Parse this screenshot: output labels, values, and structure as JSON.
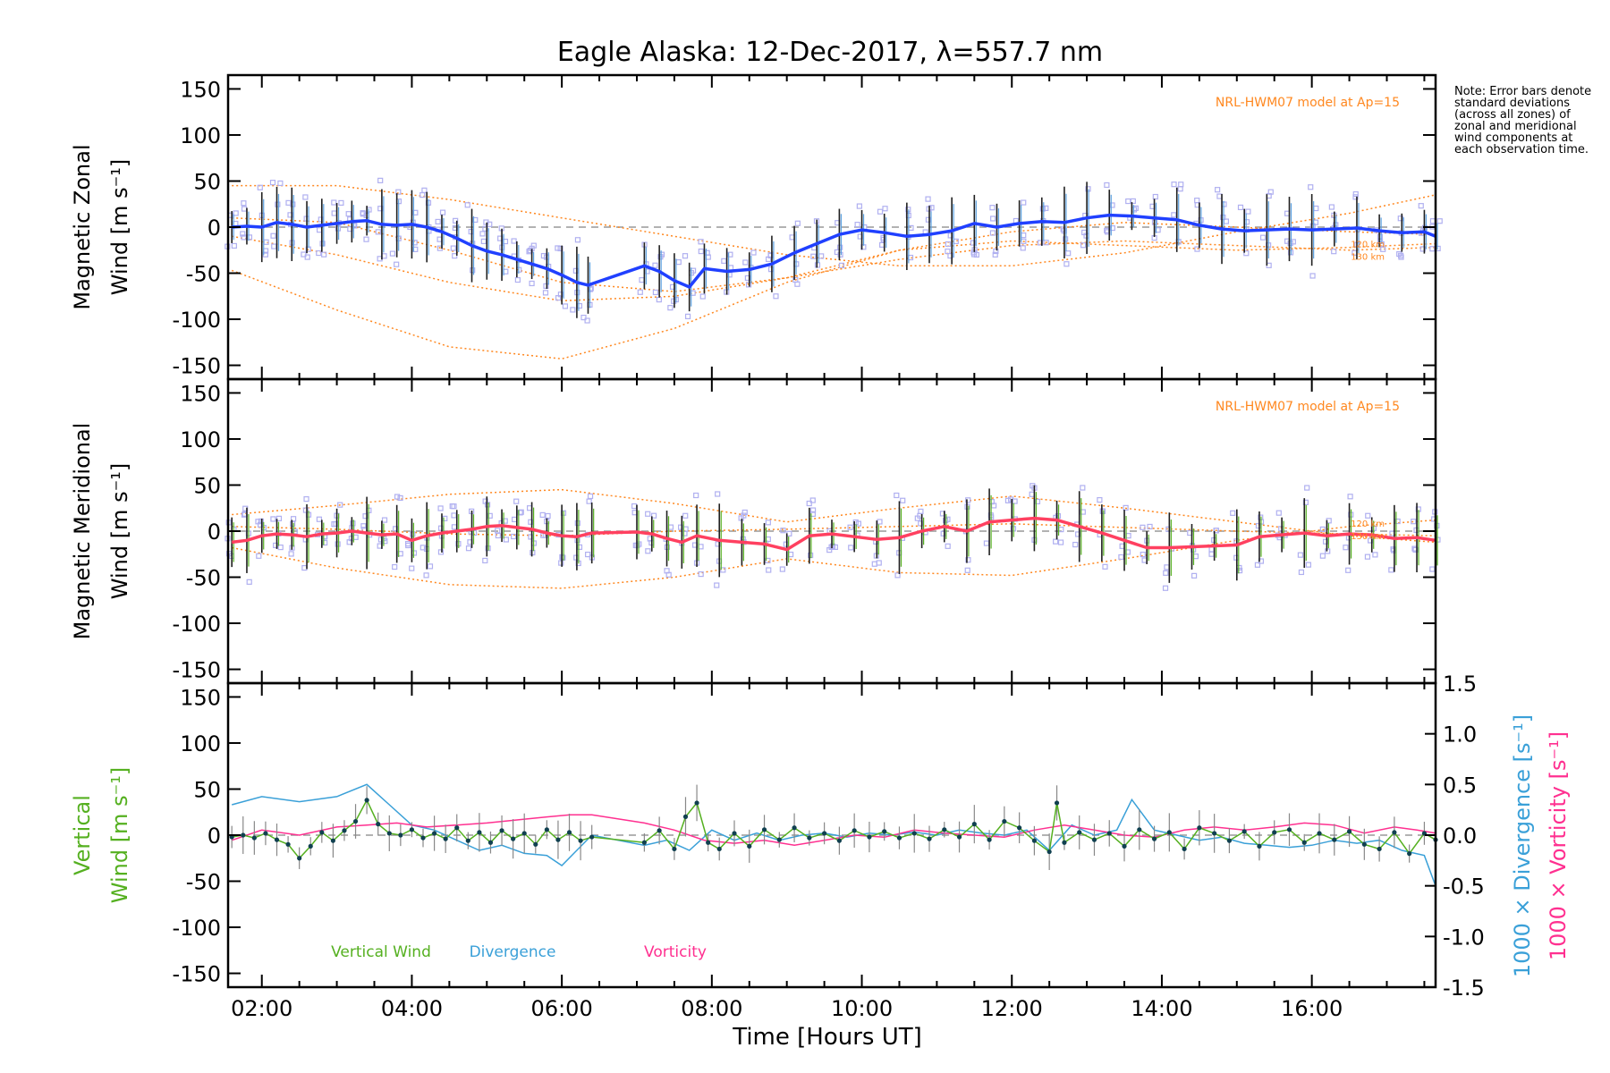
{
  "figure": {
    "title": "Eagle Alaska: 12-Dec-2017, λ=557.7 nm",
    "note": "Note: Error bars denote standard deviations (across all zones) of zonal and meridional wind components at each observation time.",
    "xlabel": "Time [Hours UT]",
    "x_ticks": [
      "02:00",
      "04:00",
      "06:00",
      "08:00",
      "10:00",
      "12:00",
      "14:00",
      "16:00"
    ]
  },
  "colors": {
    "zonal": "#2040ff",
    "zonal_mean": "#5aa0e0",
    "meridional": "#ff4060",
    "model": "#ff8820",
    "scatter": "#b0b0f0",
    "vertical": "#55b020",
    "divergence": "#3aa0d8",
    "vorticity": "#ff3090",
    "errbar": "#202020"
  },
  "chart_data": [
    {
      "type": "line",
      "panel": "zonal",
      "ylabel_line1": "Magnetic Zonal",
      "ylabel_line2": "Wind [m s⁻¹]",
      "model_label": "NRL-HWM07 model at Ap=15",
      "model_alt_labels": [
        "120 km",
        "130 km"
      ],
      "xlim": [
        1.55,
        17.65
      ],
      "ylim": [
        -165,
        165
      ],
      "y_ticks": [
        -150,
        -100,
        -50,
        0,
        50,
        100,
        150
      ],
      "series": [
        {
          "x": [
            1.6,
            1.8,
            2.0,
            2.2,
            2.4,
            2.6,
            2.8,
            3.0,
            3.2,
            3.4,
            3.6,
            3.8,
            4.0,
            4.2,
            4.4,
            4.6,
            4.8,
            5.0,
            5.2,
            5.4,
            5.6,
            5.8,
            6.0,
            6.2,
            6.35,
            7.1,
            7.3,
            7.5,
            7.7,
            7.9,
            8.2,
            8.5,
            8.8,
            9.1,
            9.4,
            9.7,
            10.0,
            10.3,
            10.6,
            10.9,
            11.2,
            11.5,
            11.8,
            12.1,
            12.4,
            12.7,
            13.0,
            13.3,
            13.6,
            13.9,
            14.2,
            14.5,
            14.8,
            15.1,
            15.4,
            15.7,
            16.0,
            16.3,
            16.6,
            16.9,
            17.2,
            17.5,
            17.65
          ],
          "y": [
            0,
            1,
            0,
            5,
            3,
            0,
            2,
            4,
            6,
            7,
            3,
            2,
            3,
            0,
            -5,
            -12,
            -20,
            -26,
            -30,
            -35,
            -40,
            -45,
            -52,
            -60,
            -63,
            -42,
            -48,
            -58,
            -65,
            -45,
            -48,
            -46,
            -40,
            -28,
            -18,
            -8,
            -3,
            -6,
            -10,
            -8,
            -4,
            4,
            0,
            4,
            6,
            5,
            10,
            13,
            12,
            10,
            8,
            2,
            -2,
            -4,
            -3,
            -2,
            -3,
            -2,
            -1,
            -4,
            -6,
            -5,
            -10
          ]
        }
      ],
      "model_curves": [
        {
          "x": [
            1.6,
            3,
            4.5,
            6,
            7.5,
            9,
            10.5,
            12,
            13.5,
            15,
            16.5,
            17.65
          ],
          "y": [
            -47,
            -90,
            -130,
            -143,
            -110,
            -60,
            -25,
            -15,
            -20,
            -25,
            -22,
            -18
          ]
        },
        {
          "x": [
            1.6,
            3,
            4.5,
            6,
            7.5,
            9,
            10.5,
            12,
            13.5,
            15,
            16.5,
            17.65
          ],
          "y": [
            45,
            45,
            30,
            10,
            -10,
            -30,
            -42,
            -42,
            -28,
            -5,
            15,
            35
          ]
        },
        {
          "x": [
            1.6,
            3,
            4.5,
            6,
            7.5,
            9,
            10.5,
            12,
            13.5,
            15,
            16.5,
            17.65
          ],
          "y": [
            -10,
            -30,
            -60,
            -80,
            -75,
            -55,
            -35,
            -20,
            -15,
            -20,
            -25,
            -22
          ]
        },
        {
          "x": [
            1.6,
            3,
            4.5,
            6,
            7.5,
            9,
            10.5,
            12,
            13.5,
            15,
            16.5,
            17.65
          ],
          "y": [
            10,
            5,
            -25,
            -60,
            -70,
            -55,
            -25,
            -5,
            5,
            0,
            -5,
            -8
          ]
        }
      ]
    },
    {
      "type": "line",
      "panel": "meridional",
      "ylabel_line1": "Magnetic Meridional",
      "ylabel_line2": "Wind [m s⁻¹]",
      "model_label": "NRL-HWM07 model at Ap=15",
      "model_alt_labels": [
        "120 km",
        "130 km"
      ],
      "xlim": [
        1.55,
        17.65
      ],
      "ylim": [
        -165,
        165
      ],
      "y_ticks": [
        -150,
        -100,
        -50,
        0,
        50,
        100,
        150
      ],
      "series": [
        {
          "x": [
            1.6,
            1.8,
            2.0,
            2.2,
            2.4,
            2.6,
            2.8,
            3.0,
            3.2,
            3.4,
            3.6,
            3.8,
            4.0,
            4.2,
            4.4,
            4.6,
            4.8,
            5.0,
            5.2,
            5.4,
            5.6,
            5.8,
            6.0,
            6.2,
            6.4,
            7.0,
            7.2,
            7.4,
            7.6,
            7.8,
            8.1,
            8.4,
            8.7,
            9.0,
            9.3,
            9.6,
            9.9,
            10.2,
            10.5,
            10.8,
            11.1,
            11.4,
            11.7,
            12.0,
            12.3,
            12.6,
            12.9,
            13.2,
            13.5,
            13.8,
            14.1,
            14.4,
            14.7,
            15.0,
            15.3,
            15.6,
            15.9,
            16.2,
            16.5,
            16.8,
            17.1,
            17.4,
            17.65
          ],
          "y": [
            -12,
            -10,
            -5,
            -3,
            -4,
            -6,
            -3,
            -2,
            0,
            -2,
            -4,
            -3,
            -10,
            -5,
            -2,
            0,
            2,
            5,
            6,
            4,
            2,
            -2,
            -5,
            -6,
            -2,
            -1,
            -3,
            -8,
            -12,
            -5,
            -10,
            -12,
            -14,
            -20,
            -5,
            -3,
            -6,
            -9,
            -7,
            0,
            5,
            0,
            10,
            12,
            14,
            12,
            5,
            -2,
            -10,
            -18,
            -18,
            -17,
            -16,
            -15,
            -6,
            -4,
            -2,
            -5,
            -3,
            -4,
            -8,
            -7,
            -10
          ]
        }
      ],
      "model_curves": [
        {
          "x": [
            1.6,
            3,
            4.5,
            6,
            7.5,
            9,
            10.5,
            12,
            13.5,
            15,
            16.5,
            17.65
          ],
          "y": [
            18,
            28,
            40,
            45,
            30,
            10,
            25,
            38,
            25,
            10,
            -5,
            -12
          ]
        },
        {
          "x": [
            1.6,
            3,
            4.5,
            6,
            7.5,
            9,
            10.5,
            12,
            13.5,
            15,
            16.5,
            17.65
          ],
          "y": [
            -18,
            -40,
            -58,
            -62,
            -50,
            -30,
            -45,
            -48,
            -30,
            -10,
            5,
            12
          ]
        },
        {
          "x": [
            1.6,
            3,
            4.5,
            6,
            7.5,
            9,
            10.5,
            12,
            13.5,
            15,
            16.5,
            17.65
          ],
          "y": [
            5,
            2,
            -3,
            -5,
            0,
            2,
            5,
            8,
            4,
            0,
            -3,
            -5
          ]
        }
      ]
    },
    {
      "type": "line",
      "panel": "vertical",
      "ylabel_line1": "Vertical",
      "ylabel_line2": "Wind [m s⁻¹]",
      "right_axis_label_div": "1000 × Divergence [s⁻¹]",
      "right_axis_label_vort": "1000 × Vorticity [s⁻¹]",
      "xlim": [
        1.55,
        17.65
      ],
      "ylim": [
        -165,
        165
      ],
      "y_ticks": [
        -150,
        -100,
        -50,
        0,
        50,
        100,
        150
      ],
      "y2lim": [
        -1.5,
        1.5
      ],
      "y2_ticks": [
        "1.5",
        "1.0",
        "0.5",
        "0.0",
        "-0.5",
        "-1.0",
        "-1.5"
      ],
      "legend": [
        "Vertical Wind",
        "Divergence",
        "Vorticity"
      ],
      "series": [
        {
          "name": "Vertical Wind",
          "x": [
            1.6,
            1.75,
            1.9,
            2.05,
            2.2,
            2.35,
            2.5,
            2.65,
            2.8,
            2.95,
            3.1,
            3.25,
            3.4,
            3.55,
            3.7,
            3.85,
            4.0,
            4.15,
            4.3,
            4.45,
            4.6,
            4.75,
            4.9,
            5.05,
            5.2,
            5.35,
            5.5,
            5.65,
            5.8,
            5.95,
            6.1,
            6.25,
            6.4,
            7.1,
            7.3,
            7.5,
            7.65,
            7.8,
            7.95,
            8.1,
            8.3,
            8.5,
            8.7,
            8.9,
            9.1,
            9.3,
            9.5,
            9.7,
            9.9,
            10.1,
            10.3,
            10.5,
            10.7,
            10.9,
            11.1,
            11.3,
            11.5,
            11.7,
            11.9,
            12.1,
            12.3,
            12.5,
            12.6,
            12.7,
            12.9,
            13.1,
            13.3,
            13.5,
            13.7,
            13.9,
            14.1,
            14.3,
            14.5,
            14.7,
            14.9,
            15.1,
            15.3,
            15.5,
            15.7,
            15.9,
            16.1,
            16.3,
            16.5,
            16.7,
            16.9,
            17.1,
            17.3,
            17.5,
            17.65
          ],
          "y": [
            -2,
            0,
            -3,
            2,
            -5,
            -10,
            -25,
            -12,
            3,
            -6,
            5,
            15,
            38,
            12,
            2,
            0,
            6,
            -3,
            2,
            -4,
            8,
            -6,
            3,
            -8,
            5,
            -4,
            2,
            -10,
            6,
            -5,
            3,
            -6,
            -2,
            -8,
            5,
            -15,
            20,
            35,
            -8,
            -15,
            2,
            -12,
            6,
            -5,
            8,
            -3,
            2,
            -6,
            5,
            -2,
            4,
            -3,
            2,
            -4,
            6,
            -2,
            12,
            -5,
            15,
            8,
            -6,
            -18,
            35,
            -8,
            3,
            -5,
            2,
            -12,
            6,
            -4,
            3,
            -15,
            8,
            2,
            -6,
            4,
            -12,
            3,
            6,
            -8,
            2,
            -5,
            4,
            -10,
            -15,
            3,
            -20,
            2,
            -5
          ]
        },
        {
          "name": "Divergence",
          "x": [
            1.6,
            2.0,
            2.5,
            3.0,
            3.4,
            3.7,
            4.0,
            4.3,
            4.6,
            4.9,
            5.2,
            5.5,
            5.8,
            6.0,
            6.2,
            6.4,
            7.1,
            7.4,
            7.7,
            8.0,
            8.3,
            8.6,
            8.9,
            9.2,
            9.5,
            9.8,
            10.1,
            10.4,
            10.7,
            11.0,
            11.3,
            11.6,
            11.9,
            12.2,
            12.5,
            12.8,
            13.1,
            13.4,
            13.6,
            13.9,
            14.2,
            14.5,
            14.8,
            15.1,
            15.4,
            15.7,
            16.0,
            16.3,
            16.6,
            16.9,
            17.2,
            17.5,
            17.65
          ],
          "y": [
            0.3,
            0.38,
            0.33,
            0.38,
            0.5,
            0.3,
            0.1,
            0.05,
            -0.05,
            -0.15,
            -0.1,
            -0.18,
            -0.2,
            -0.3,
            -0.15,
            0.0,
            -0.1,
            -0.05,
            -0.15,
            0.05,
            -0.05,
            0.02,
            -0.05,
            0.0,
            0.02,
            -0.02,
            0.02,
            0.0,
            0.03,
            0.0,
            0.05,
            0.02,
            0.0,
            0.05,
            -0.15,
            0.1,
            0.0,
            0.05,
            0.35,
            0.05,
            0.0,
            -0.05,
            -0.02,
            -0.08,
            -0.1,
            -0.12,
            -0.1,
            -0.05,
            -0.08,
            -0.05,
            -0.15,
            -0.2,
            -0.5
          ]
        },
        {
          "name": "Vorticity",
          "x": [
            1.6,
            2.0,
            2.5,
            3.0,
            3.4,
            3.8,
            4.2,
            4.6,
            5.0,
            5.4,
            5.8,
            6.1,
            6.4,
            7.1,
            7.5,
            7.9,
            8.3,
            8.7,
            9.1,
            9.5,
            9.9,
            10.3,
            10.7,
            11.1,
            11.5,
            11.9,
            12.3,
            12.7,
            13.1,
            13.5,
            13.9,
            14.3,
            14.7,
            15.1,
            15.5,
            15.9,
            16.3,
            16.7,
            17.1,
            17.4,
            17.65
          ],
          "y": [
            -0.05,
            0.05,
            0.0,
            0.08,
            0.1,
            0.12,
            0.08,
            0.1,
            0.12,
            0.15,
            0.18,
            0.2,
            0.2,
            0.12,
            0.05,
            -0.05,
            -0.08,
            -0.05,
            -0.1,
            -0.05,
            0.0,
            -0.02,
            0.05,
            0.02,
            0.0,
            -0.02,
            0.05,
            0.1,
            0.05,
            0.0,
            -0.02,
            0.05,
            0.08,
            0.05,
            0.08,
            0.12,
            0.1,
            0.02,
            0.08,
            0.05,
            0.02
          ]
        }
      ]
    }
  ]
}
